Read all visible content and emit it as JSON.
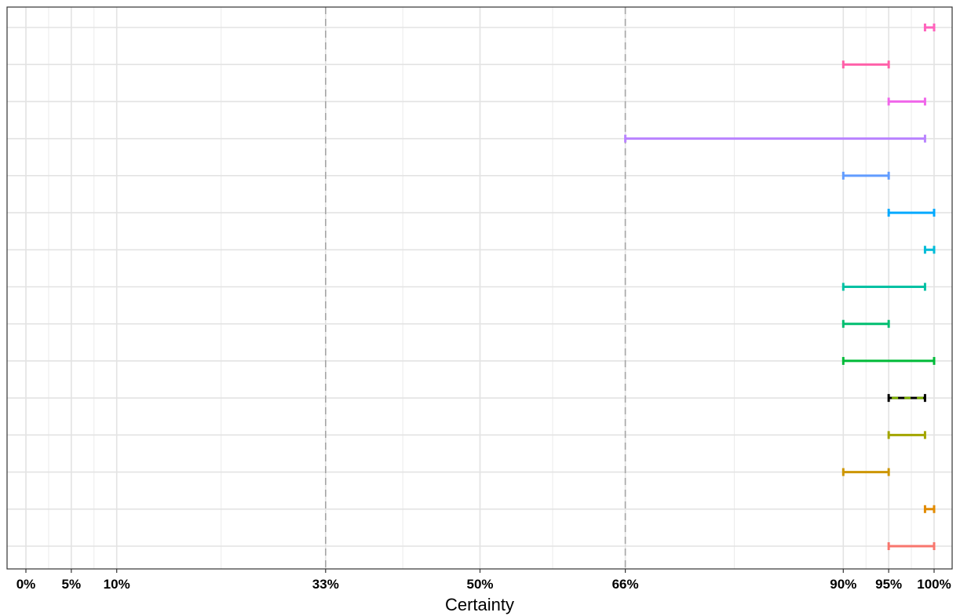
{
  "chart_data": {
    "type": "range",
    "xlabel": "Certainty",
    "xlim": [
      0,
      100
    ],
    "x_ticks": [
      {
        "value": 0,
        "label": "0%"
      },
      {
        "value": 5,
        "label": "5%"
      },
      {
        "value": 10,
        "label": "10%"
      },
      {
        "value": 33,
        "label": "33%"
      },
      {
        "value": 50,
        "label": "50%"
      },
      {
        "value": 66,
        "label": "66%"
      },
      {
        "value": 90,
        "label": "90%"
      },
      {
        "value": 95,
        "label": "95%"
      },
      {
        "value": 100,
        "label": "100%"
      }
    ],
    "minor_gridlines": [
      2.5,
      7.5,
      21.5,
      41.5,
      58,
      78,
      92.5,
      97.5
    ],
    "reference_lines": [
      33,
      66
    ],
    "grid": true,
    "ranges": [
      {
        "low": 99,
        "high": 100,
        "color": "#FF62BC"
      },
      {
        "low": 90,
        "high": 95,
        "color": "#FF5FA8"
      },
      {
        "low": 95,
        "high": 99,
        "color": "#F066EA"
      },
      {
        "low": 66,
        "high": 99,
        "color": "#B983FF"
      },
      {
        "low": 90,
        "high": 95,
        "color": "#619CFF"
      },
      {
        "low": 95,
        "high": 100,
        "color": "#00A9FF"
      },
      {
        "low": 99,
        "high": 100,
        "color": "#00BCD8"
      },
      {
        "low": 90,
        "high": 99,
        "color": "#00C1A3"
      },
      {
        "low": 90,
        "high": 95,
        "color": "#00BE70"
      },
      {
        "low": 90,
        "high": 100,
        "color": "#00BA38"
      },
      {
        "low": 95,
        "high": 99,
        "color": "#000000",
        "dashed_color": "#7CAE00"
      },
      {
        "low": 95,
        "high": 99,
        "color": "#A3A500"
      },
      {
        "low": 90,
        "high": 95,
        "color": "#CD9600"
      },
      {
        "low": 99,
        "high": 100,
        "color": "#E18A00"
      },
      {
        "low": 95,
        "high": 100,
        "color": "#F8766D"
      }
    ]
  }
}
